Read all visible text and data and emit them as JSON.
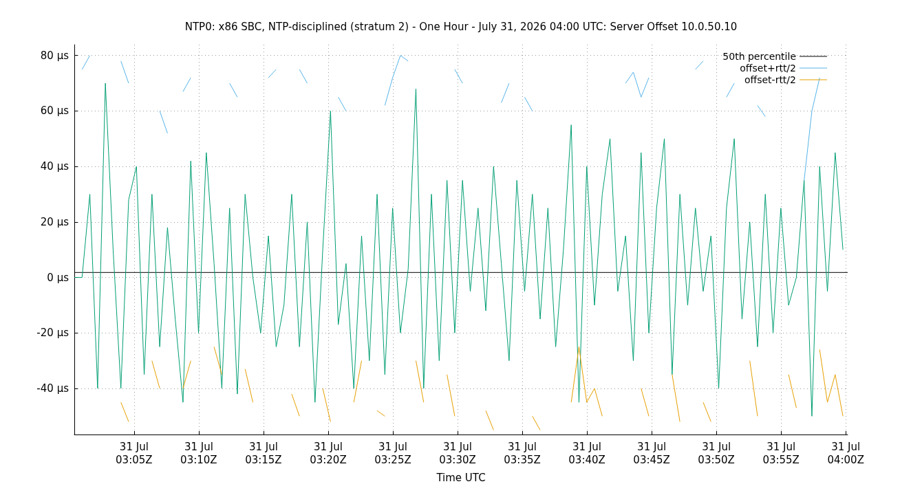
{
  "chart_data": {
    "type": "line",
    "title": "NTP0: x86 SBC, NTP-disciplined (stratum 2) - One Hour - July 31, 2026 04:00 UTC: Server Offset 10.0.50.10",
    "xlabel": "Time UTC",
    "x": [
      "2026-07-31T03:00:23",
      "2026-07-31T03:00:59",
      "2026-07-31T03:01:35",
      "2026-07-31T03:02:11",
      "2026-07-31T03:02:47",
      "2026-07-31T03:03:23",
      "2026-07-31T03:03:59",
      "2026-07-31T03:04:35",
      "2026-07-31T03:05:11",
      "2026-07-31T03:05:47",
      "2026-07-31T03:06:23",
      "2026-07-31T03:06:59",
      "2026-07-31T03:07:35",
      "2026-07-31T03:08:11",
      "2026-07-31T03:08:47",
      "2026-07-31T03:09:23",
      "2026-07-31T03:09:59",
      "2026-07-31T03:10:35",
      "2026-07-31T03:11:11",
      "2026-07-31T03:11:47",
      "2026-07-31T03:12:23",
      "2026-07-31T03:12:59",
      "2026-07-31T03:13:35",
      "2026-07-31T03:14:11",
      "2026-07-31T03:14:47",
      "2026-07-31T03:15:23",
      "2026-07-31T03:15:59",
      "2026-07-31T03:16:35",
      "2026-07-31T03:17:11",
      "2026-07-31T03:17:47",
      "2026-07-31T03:18:23",
      "2026-07-31T03:18:59",
      "2026-07-31T03:19:35",
      "2026-07-31T03:20:11",
      "2026-07-31T03:20:47",
      "2026-07-31T03:21:23",
      "2026-07-31T03:21:59",
      "2026-07-31T03:22:35",
      "2026-07-31T03:23:11",
      "2026-07-31T03:23:47",
      "2026-07-31T03:24:23",
      "2026-07-31T03:24:59",
      "2026-07-31T03:25:35",
      "2026-07-31T03:26:11",
      "2026-07-31T03:26:47",
      "2026-07-31T03:27:23",
      "2026-07-31T03:27:59",
      "2026-07-31T03:28:35",
      "2026-07-31T03:29:11",
      "2026-07-31T03:29:47",
      "2026-07-31T03:30:23",
      "2026-07-31T03:30:59",
      "2026-07-31T03:31:35",
      "2026-07-31T03:32:11",
      "2026-07-31T03:32:47",
      "2026-07-31T03:33:23",
      "2026-07-31T03:33:59",
      "2026-07-31T03:34:35",
      "2026-07-31T03:35:11",
      "2026-07-31T03:35:47",
      "2026-07-31T03:36:23",
      "2026-07-31T03:36:59",
      "2026-07-31T03:37:35",
      "2026-07-31T03:38:11",
      "2026-07-31T03:38:47",
      "2026-07-31T03:39:23",
      "2026-07-31T03:39:59",
      "2026-07-31T03:40:35",
      "2026-07-31T03:41:11",
      "2026-07-31T03:41:47",
      "2026-07-31T03:42:23",
      "2026-07-31T03:42:59",
      "2026-07-31T03:43:35",
      "2026-07-31T03:44:11",
      "2026-07-31T03:44:47",
      "2026-07-31T03:45:23",
      "2026-07-31T03:45:59",
      "2026-07-31T03:46:35",
      "2026-07-31T03:47:11",
      "2026-07-31T03:47:47",
      "2026-07-31T03:48:23",
      "2026-07-31T03:48:59",
      "2026-07-31T03:49:35",
      "2026-07-31T03:50:11",
      "2026-07-31T03:50:47",
      "2026-07-31T03:51:23",
      "2026-07-31T03:51:59",
      "2026-07-31T03:52:35",
      "2026-07-31T03:53:11",
      "2026-07-31T03:53:47",
      "2026-07-31T03:54:23",
      "2026-07-31T03:54:59",
      "2026-07-31T03:55:35",
      "2026-07-31T03:56:11",
      "2026-07-31T03:56:47",
      "2026-07-31T03:57:23",
      "2026-07-31T03:57:59",
      "2026-07-31T03:58:35",
      "2026-07-31T03:59:11",
      "2026-07-31T03:59:47"
    ],
    "series": [
      {
        "name": "50th percentile",
        "color": "#000000",
        "x": [
          "2026-07-31T03:00:23",
          "2026-07-31T04:00:09"
        ],
        "values": [
          1.8,
          1.8
        ]
      },
      {
        "color": "#009e73",
        "values": [
          0,
          0,
          30,
          -40,
          70,
          10,
          -40,
          28,
          40,
          -35,
          30,
          -25,
          18,
          -15,
          -45,
          42,
          -20,
          45,
          5,
          -40,
          25,
          -42,
          30,
          0,
          -20,
          15,
          -25,
          -10,
          30,
          -25,
          20,
          -45,
          10,
          60,
          -17,
          5,
          -40,
          15,
          -30,
          30,
          -35,
          25,
          -20,
          3,
          68,
          -40,
          30,
          -30,
          35,
          -20,
          35,
          -5,
          25,
          -12,
          40,
          5,
          -30,
          35,
          -5,
          30,
          -15,
          25,
          -25,
          10,
          55,
          -45,
          40,
          -10,
          30,
          50,
          -5,
          15,
          -30,
          45,
          -20,
          25,
          50,
          -35,
          30,
          -10,
          25,
          -5,
          15,
          -40,
          25,
          50,
          -15,
          20,
          -25,
          30,
          -20,
          25,
          -10,
          0,
          35,
          -50,
          40,
          -5,
          45,
          10
        ]
      },
      {
        "name": "offset+rtt/2",
        "color": "#56b4e9",
        "values": [
          null,
          75,
          80,
          null,
          null,
          null,
          78,
          70,
          null,
          null,
          null,
          60,
          52,
          null,
          67,
          72,
          null,
          null,
          null,
          null,
          70,
          65,
          null,
          null,
          null,
          72,
          75,
          null,
          null,
          75,
          70,
          null,
          null,
          null,
          65,
          60,
          null,
          null,
          null,
          null,
          62,
          72,
          80,
          78,
          null,
          null,
          null,
          null,
          null,
          75,
          70,
          null,
          null,
          null,
          null,
          63,
          70,
          null,
          65,
          60,
          null,
          null,
          null,
          null,
          null,
          null,
          null,
          null,
          null,
          null,
          null,
          70,
          74,
          65,
          72,
          null,
          null,
          null,
          null,
          null,
          75,
          78,
          null,
          null,
          65,
          70,
          null,
          null,
          62,
          58,
          null,
          null,
          null,
          null,
          35,
          60,
          72,
          null,
          null,
          null
        ]
      },
      {
        "name": "offset-rtt/2",
        "color": "#e69f00",
        "values": [
          null,
          null,
          null,
          null,
          null,
          null,
          -45,
          -52,
          null,
          null,
          -30,
          -40,
          null,
          null,
          -40,
          -30,
          null,
          null,
          -25,
          -35,
          null,
          null,
          -33,
          -45,
          null,
          null,
          null,
          null,
          -42,
          -50,
          null,
          null,
          -40,
          -52,
          null,
          null,
          -45,
          -30,
          null,
          -48,
          -50,
          null,
          null,
          null,
          -30,
          -45,
          null,
          null,
          -35,
          -50,
          null,
          null,
          null,
          -48,
          -55,
          null,
          null,
          null,
          null,
          -50,
          -55,
          null,
          null,
          null,
          -45,
          -25,
          -45,
          -40,
          -50,
          null,
          null,
          null,
          null,
          -40,
          -50,
          null,
          null,
          -35,
          -52,
          null,
          null,
          -45,
          -52,
          null,
          null,
          null,
          null,
          -30,
          -50,
          null,
          null,
          null,
          -35,
          -47,
          null,
          null,
          -26,
          -45,
          -35,
          -50
        ]
      }
    ],
    "xlim": [
      "2026-07-31T03:00:23",
      "2026-07-31T04:00:09"
    ],
    "xticks": [
      {
        "value": "2026-07-31T03:05",
        "label": "31 Jul\n03:05Z"
      },
      {
        "value": "2026-07-31T03:10",
        "label": "31 Jul\n03:10Z"
      },
      {
        "value": "2026-07-31T03:15",
        "label": "31 Jul\n03:15Z"
      },
      {
        "value": "2026-07-31T03:20",
        "label": "31 Jul\n03:20Z"
      },
      {
        "value": "2026-07-31T03:25",
        "label": "31 Jul\n03:25Z"
      },
      {
        "value": "2026-07-31T03:30",
        "label": "31 Jul\n03:30Z"
      },
      {
        "value": "2026-07-31T03:35",
        "label": "31 Jul\n03:35Z"
      },
      {
        "value": "2026-07-31T03:40",
        "label": "31 Jul\n03:40Z"
      },
      {
        "value": "2026-07-31T03:45",
        "label": "31 Jul\n03:45Z"
      },
      {
        "value": "2026-07-31T03:50",
        "label": "31 Jul\n03:50Z"
      },
      {
        "value": "2026-07-31T03:55",
        "label": "31 Jul\n03:55Z"
      },
      {
        "value": "2026-07-31T04:00",
        "label": "31 Jul\n04:00Z"
      }
    ],
    "ylim": [
      -56.6,
      83.9
    ],
    "yticks": [
      {
        "value": -40,
        "label": "-40 µs"
      },
      {
        "value": -20,
        "label": "-20 µs"
      },
      {
        "value": 0,
        "label": "0 µs"
      },
      {
        "value": 20,
        "label": "20 µs"
      },
      {
        "value": 40,
        "label": "40 µs"
      },
      {
        "value": 60,
        "label": "60 µs"
      },
      {
        "value": 80,
        "label": "80 µs"
      }
    ],
    "grid": true,
    "legend": "top right",
    "marker": "none",
    "line_style": "solid"
  }
}
